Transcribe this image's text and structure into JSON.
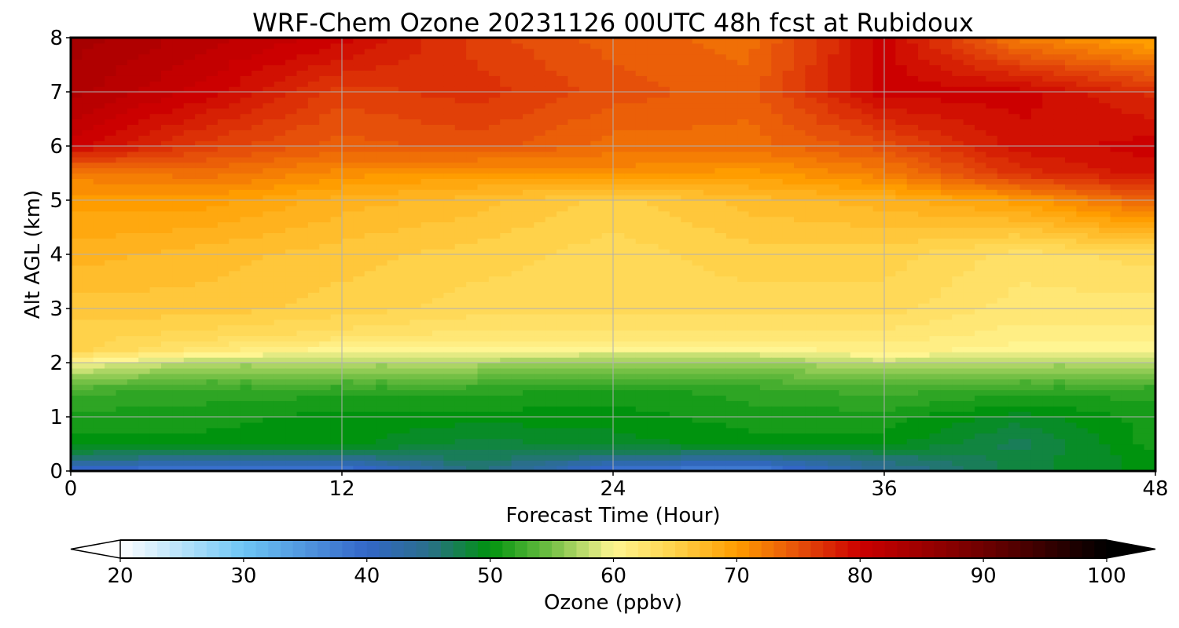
{
  "chart_data": {
    "type": "heatmap",
    "title": "WRF-Chem Ozone  20231126 00UTC 48h fcst at Rubidoux",
    "xlabel": "Forecast Time (Hour)",
    "ylabel": "Alt AGL (km)",
    "xlim": [
      0,
      48
    ],
    "ylim": [
      0,
      8
    ],
    "x_ticks": [
      0,
      12,
      24,
      36,
      48
    ],
    "y_ticks": [
      0,
      1,
      2,
      3,
      4,
      5,
      6,
      7,
      8
    ],
    "grid": true,
    "x": [
      0,
      6,
      12,
      18,
      24,
      30,
      36,
      42,
      48
    ],
    "y": [
      0,
      0.25,
      0.5,
      1,
      1.5,
      2,
      2.25,
      2.5,
      3,
      4,
      5,
      5.5,
      6,
      7,
      8
    ],
    "z": [
      [
        38,
        38,
        37,
        46,
        38,
        36,
        44,
        48,
        50
      ],
      [
        46,
        45,
        45,
        47,
        45,
        44,
        46,
        48,
        50
      ],
      [
        50,
        50,
        50,
        48,
        49,
        50,
        50,
        47,
        51
      ],
      [
        51,
        51,
        50,
        50,
        50,
        51,
        51,
        49,
        51
      ],
      [
        53,
        52,
        52,
        52,
        51,
        52,
        53,
        52,
        52
      ],
      [
        60,
        57,
        57,
        57,
        56,
        56,
        58,
        57,
        57
      ],
      [
        65,
        62,
        60,
        60,
        60,
        60,
        61,
        60,
        60
      ],
      [
        65,
        64,
        63,
        62,
        62,
        62,
        62,
        61,
        61
      ],
      [
        66,
        66,
        65,
        64,
        64,
        64,
        64,
        62,
        62
      ],
      [
        68,
        67,
        66,
        65,
        64,
        65,
        65,
        63,
        64
      ],
      [
        70,
        70,
        68,
        67,
        65,
        67,
        68,
        70,
        74
      ],
      [
        72,
        73,
        71,
        70,
        71,
        70,
        72,
        77,
        79
      ],
      [
        80,
        76,
        74,
        75,
        73,
        73,
        75,
        79,
        80
      ],
      [
        83,
        80,
        76,
        77,
        75,
        74,
        80,
        80,
        77
      ],
      [
        84,
        82,
        80,
        76,
        74,
        73,
        80,
        72,
        69
      ]
    ],
    "colorbar": {
      "label": "Ozone  (ppbv)",
      "min": 20,
      "max": 100,
      "ticks": [
        20,
        30,
        40,
        50,
        60,
        70,
        80,
        90,
        100
      ],
      "extend": "both",
      "stops": [
        {
          "v": 20,
          "c": "#ffffff"
        },
        {
          "v": 30,
          "c": "#6ec6f5"
        },
        {
          "v": 40,
          "c": "#3366c8"
        },
        {
          "v": 45,
          "c": "#2a6f8a"
        },
        {
          "v": 50,
          "c": "#00930e"
        },
        {
          "v": 55,
          "c": "#74c045"
        },
        {
          "v": 60,
          "c": "#fff592"
        },
        {
          "v": 65,
          "c": "#ffd24a"
        },
        {
          "v": 70,
          "c": "#ff9d00"
        },
        {
          "v": 75,
          "c": "#e6500a"
        },
        {
          "v": 80,
          "c": "#cc0000"
        },
        {
          "v": 90,
          "c": "#6e0000"
        },
        {
          "v": 100,
          "c": "#000000"
        }
      ]
    }
  }
}
